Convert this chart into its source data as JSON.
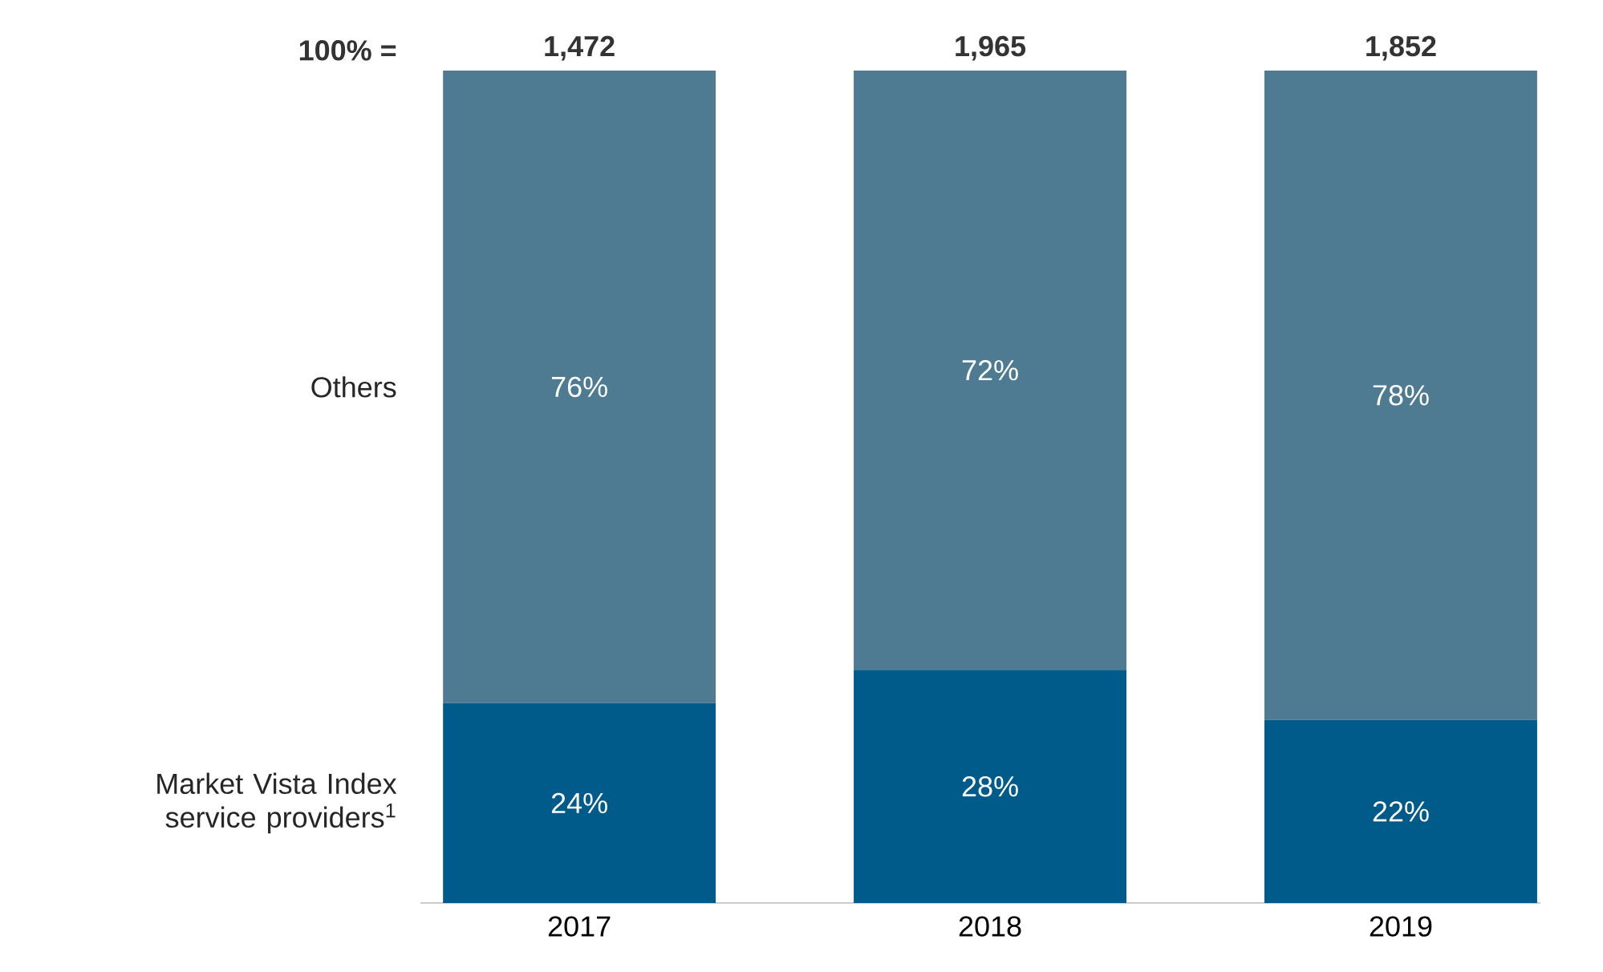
{
  "chart_data": {
    "type": "bar",
    "stacked": true,
    "categories": [
      "2017",
      "2018",
      "2019"
    ],
    "series": [
      {
        "name": "Market Vista Index service providers$^{1}$",
        "color": "#005a8a",
        "values": [
          24,
          28,
          22
        ],
        "value_labels": [
          "24%",
          "28%",
          "22%"
        ]
      },
      {
        "name": "Others",
        "color": "#4e7b91",
        "values": [
          76,
          72,
          78
        ],
        "value_labels": [
          "76%",
          "72%",
          "78%"
        ]
      }
    ],
    "annotations": [
      "100% =",
      {
        "text": "1,472",
        "x": "2017",
        "y": 100
      },
      {
        "text": "1,965",
        "x": "2018",
        "y": 100
      },
      {
        "text": "1,852",
        "x": "2019",
        "y": 100
      }
    ],
    "legend": false
  }
}
